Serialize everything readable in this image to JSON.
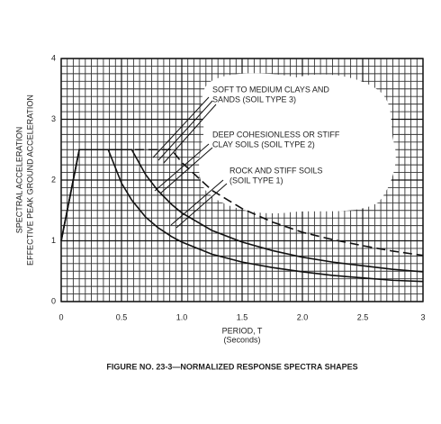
{
  "chart_data": {
    "type": "line",
    "y_label": [
      "SPECTRAL ACCELERATION",
      "EFFECTIVE PEAK GROUND ACCELERATION"
    ],
    "x_label": [
      "PERIOD, T",
      "(Seconds)"
    ],
    "caption": "FIGURE NO. 23-3—NORMALIZED RESPONSE SPECTRA SHAPES",
    "x": [
      0,
      0.15,
      0.39,
      0.5,
      0.585,
      0.7,
      0.8,
      0.915,
      1.0,
      1.25,
      1.5,
      1.75,
      2.0,
      2.25,
      2.5,
      2.75,
      3.0
    ],
    "series": [
      {
        "color": "#111111",
        "dash": false,
        "values": [
          1,
          2.5,
          2.5,
          1.95,
          1.67,
          1.39,
          1.22,
          1.07,
          0.98,
          0.78,
          0.65,
          0.56,
          0.49,
          0.43,
          0.39,
          0.35,
          0.33
        ]
      },
      {
        "color": "#111111",
        "dash": false,
        "values": [
          1,
          2.5,
          2.5,
          2.5,
          2.5,
          2.09,
          1.83,
          1.6,
          1.46,
          1.17,
          0.98,
          0.84,
          0.73,
          0.65,
          0.59,
          0.53,
          0.49
        ]
      },
      {
        "color": "#111111",
        "dash": true,
        "values": [
          1,
          2.5,
          2.5,
          2.5,
          2.5,
          2.5,
          2.5,
          2.5,
          2.29,
          1.83,
          1.53,
          1.31,
          1.14,
          1.02,
          0.92,
          0.83,
          0.76
        ]
      }
    ],
    "annotations": [
      {
        "lines": [
          "SOFT TO MEDIUM CLAYS AND",
          "SANDS (SOIL TYPE 3)"
        ]
      },
      {
        "lines": [
          "DEEP COHESIONLESS OR STIFF",
          "CLAY SOILS (SOIL TYPE 2)"
        ]
      },
      {
        "lines": [
          "ROCK AND STIFF SOILS",
          "(SOIL TYPE 1)"
        ]
      }
    ],
    "xlim": [
      0,
      3
    ],
    "ylim": [
      0,
      4
    ],
    "xticks": [
      0,
      0.5,
      {
        "value": 1,
        "label": "1.0"
      },
      1.5,
      {
        "value": 2,
        "label": "2.0"
      },
      2.5,
      3
    ],
    "yticks": [
      0,
      1,
      2,
      3,
      4
    ],
    "grid": true
  }
}
